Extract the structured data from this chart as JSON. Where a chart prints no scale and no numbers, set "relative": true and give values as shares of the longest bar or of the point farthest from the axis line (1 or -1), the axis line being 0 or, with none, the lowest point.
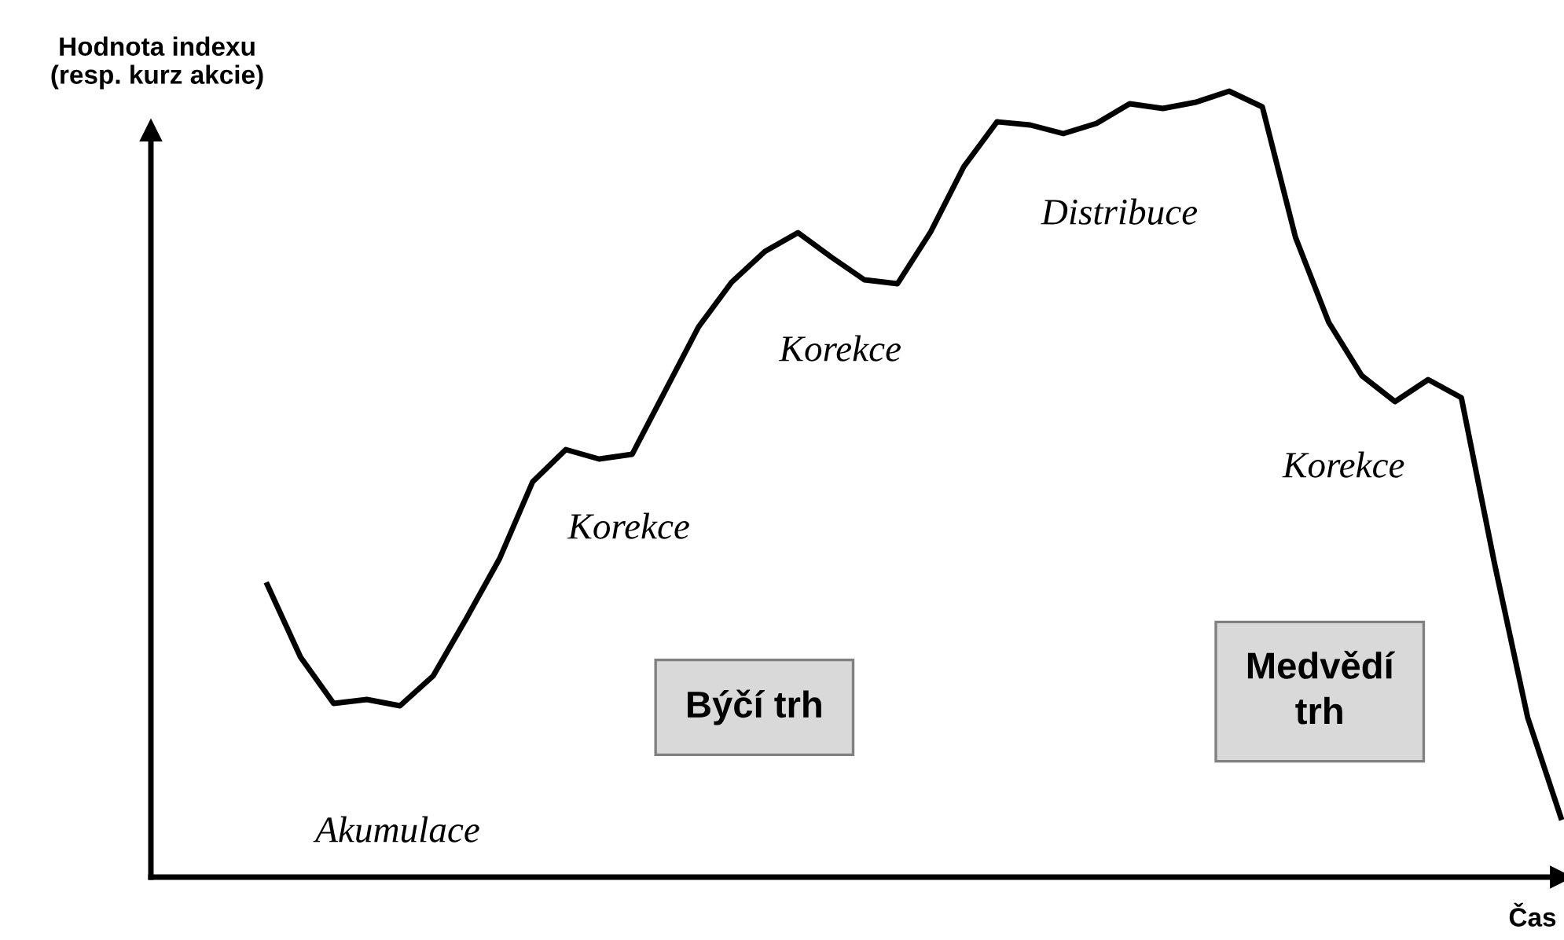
{
  "chart_data": {
    "type": "line",
    "relative": true,
    "ylabel": "Hodnota indexu\n(resp. kurz akcie)",
    "xlabel": "Čas",
    "categories": [
      null,
      null,
      null,
      null,
      null,
      null,
      null,
      null,
      null,
      null,
      null,
      null,
      null,
      null,
      null,
      null,
      null,
      null,
      null,
      null,
      null,
      null,
      null,
      null,
      null,
      null,
      null,
      null,
      null,
      null,
      null,
      null,
      null,
      null,
      null,
      null,
      null,
      null,
      null,
      null
    ],
    "series": [
      {
        "color": "#000000",
        "values": [
          0.372,
          0.28,
          0.221,
          0.226,
          0.218,
          0.256,
          0.329,
          0.405,
          0.503,
          0.544,
          0.532,
          0.538,
          0.619,
          0.7,
          0.757,
          0.796,
          0.82,
          0.789,
          0.76,
          0.755,
          0.821,
          0.904,
          0.961,
          0.957,
          0.946,
          0.959,
          0.984,
          0.978,
          0.986,
          1,
          0.98,
          0.814,
          0.706,
          0.638,
          0.605,
          0.633,
          0.61,
          0.399,
          0.203,
          0.076
        ]
      }
    ],
    "annotations": [
      "Akumulace",
      "Korekce",
      "Korekce",
      "Distribuce",
      "Korekce",
      "Býčí trh",
      "Medvědí\ntrh"
    ],
    "marker": "none",
    "line_style": "solid"
  }
}
